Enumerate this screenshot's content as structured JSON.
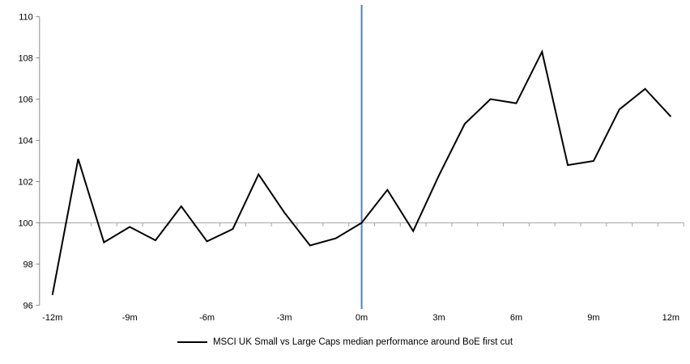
{
  "chart_data": {
    "type": "line",
    "title": "",
    "xlabel": "",
    "ylabel": "",
    "x": [
      -12,
      -11,
      -10,
      -9,
      -8,
      -7,
      -6,
      -5,
      -4,
      -3,
      -2,
      -1,
      0,
      1,
      2,
      3,
      4,
      5,
      6,
      7,
      8,
      9,
      10,
      11,
      12
    ],
    "series": [
      {
        "name": "MSCI UK Small vs Large Caps median performance around BoE first cut",
        "color": "#000000",
        "values": [
          96.5,
          103.1,
          99.05,
          99.8,
          99.15,
          100.8,
          99.1,
          99.7,
          102.35,
          100.5,
          98.9,
          99.25,
          100.0,
          101.6,
          99.6,
          102.3,
          104.8,
          106.0,
          105.8,
          108.3,
          102.8,
          103.0,
          105.5,
          106.5,
          105.15
        ]
      }
    ],
    "x_tick_labels": [
      "-12m",
      "-9m",
      "-6m",
      "-3m",
      "0m",
      "3m",
      "6m",
      "9m",
      "12m"
    ],
    "x_tick_positions": [
      -12,
      -9,
      -6,
      -3,
      0,
      3,
      6,
      9,
      12
    ],
    "y_ticks": [
      96,
      98,
      100,
      102,
      104,
      106,
      108,
      110
    ],
    "ylim": [
      96,
      110
    ],
    "baseline_y": 100,
    "event_line_x": 0,
    "grid": "off",
    "legend_position": "bottom",
    "colors": {
      "series": "#000000",
      "event_line": "#4f81bd",
      "category_axis": "#a6a6a6",
      "value_axis": "#8c8c8c",
      "text": "#000000"
    }
  }
}
